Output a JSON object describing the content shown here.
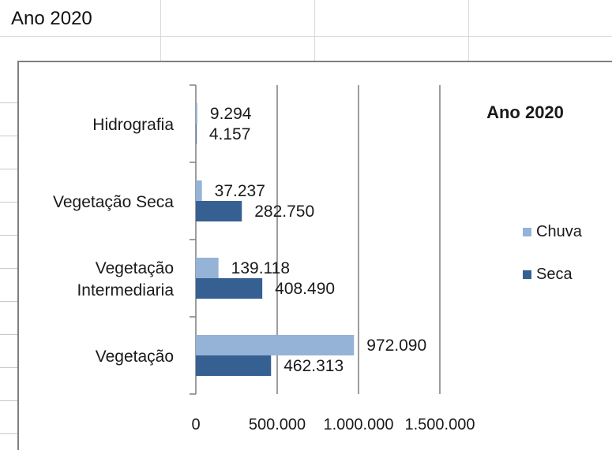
{
  "sheet": {
    "cell_title": "Ano 2020"
  },
  "chart_data": {
    "type": "bar",
    "orientation": "horizontal",
    "title": "Ano 2020",
    "categories": [
      "Vegetação",
      "Vegetação Intermediaria",
      "Vegetação Seca",
      "Hidrografia"
    ],
    "category_label_lines": [
      [
        "Vegetação"
      ],
      [
        "Vegetação",
        "Intermediaria"
      ],
      [
        "Vegetação Seca"
      ],
      [
        "Hidrografia"
      ]
    ],
    "series": [
      {
        "name": "Chuva",
        "values": [
          972090,
          139118,
          37237,
          9294
        ],
        "labels": [
          "972.090",
          "139.118",
          "37.237",
          "9.294"
        ],
        "color": "#95b3d7"
      },
      {
        "name": "Seca",
        "values": [
          462313,
          408490,
          282750,
          4157
        ],
        "labels": [
          "462.313",
          "408.490",
          "282.750",
          "4.157"
        ],
        "color": "#366092"
      }
    ],
    "xlim": [
      0,
      1500000
    ],
    "xticks": [
      0,
      500000,
      1000000,
      1500000
    ],
    "xtick_labels": [
      "0",
      "500.000",
      "1.000.000",
      "1.500.000"
    ],
    "grid": true,
    "legend_position": "right"
  }
}
